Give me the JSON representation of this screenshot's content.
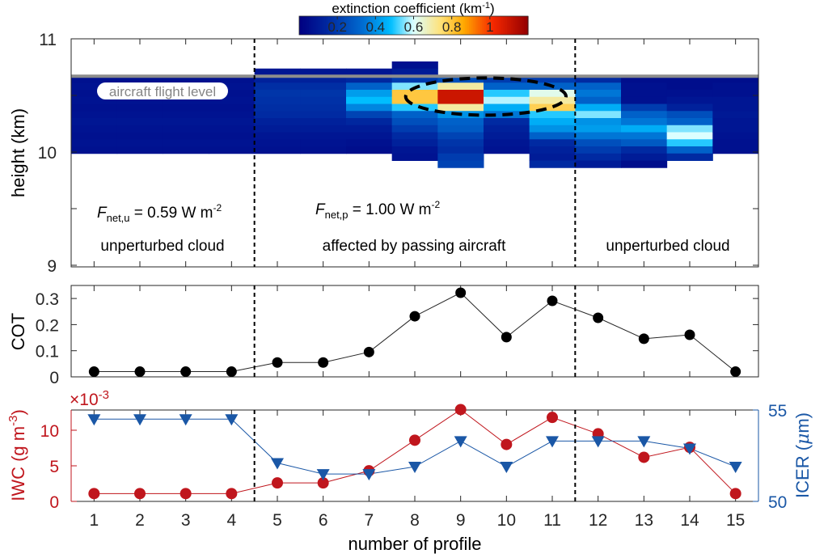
{
  "chart_data": [
    {
      "type": "heatmap",
      "panel": "top",
      "ylabel": "height (km)",
      "ylim": [
        9,
        11
      ],
      "yticks": [
        "9",
        "10",
        "11"
      ],
      "xlim": [
        0.5,
        15.5
      ],
      "colorbar": {
        "title": "extinction coefficient (km",
        "title_sup": "-1",
        "title_end": ")",
        "range": [
          0,
          1.2
        ],
        "ticks": [
          "0.2",
          "0.4",
          "0.6",
          "0.8",
          "1"
        ],
        "tick_values": [
          0.2,
          0.4,
          0.6,
          0.8,
          1.0
        ]
      },
      "bin_top_km": 10.8,
      "bin_size_km": 0.0625,
      "columns": [
        [
          null,
          null,
          0.06,
          0.07,
          0.06,
          0.07,
          0.06,
          0.07,
          0.08,
          0.07,
          0.06,
          0.07,
          0.06,
          null,
          null,
          null
        ],
        [
          null,
          null,
          0.06,
          0.07,
          0.06,
          0.07,
          0.06,
          0.07,
          0.08,
          0.07,
          0.06,
          0.07,
          0.06,
          null,
          null,
          null
        ],
        [
          null,
          null,
          0.06,
          0.07,
          0.06,
          0.07,
          0.06,
          0.07,
          0.08,
          0.07,
          0.06,
          0.07,
          0.06,
          null,
          null,
          null
        ],
        [
          null,
          null,
          0.06,
          0.07,
          0.06,
          0.07,
          0.06,
          0.07,
          0.08,
          0.07,
          0.06,
          0.07,
          0.06,
          null,
          null,
          null
        ],
        [
          null,
          0.08,
          0.12,
          0.16,
          0.18,
          0.17,
          0.16,
          0.15,
          0.12,
          0.1,
          0.08,
          0.07,
          0.06,
          null,
          null,
          null
        ],
        [
          null,
          0.08,
          0.12,
          0.16,
          0.18,
          0.17,
          0.16,
          0.15,
          0.12,
          0.1,
          0.08,
          0.07,
          0.06,
          null,
          null,
          null
        ],
        [
          null,
          0.08,
          0.14,
          0.3,
          0.42,
          0.48,
          0.38,
          0.22,
          0.14,
          0.1,
          0.08,
          0.06,
          0.05,
          null,
          null,
          null
        ],
        [
          0.06,
          0.1,
          0.2,
          0.55,
          0.8,
          0.8,
          0.5,
          0.3,
          0.25,
          0.2,
          0.15,
          0.12,
          0.08,
          0.07,
          null,
          null
        ],
        [
          null,
          null,
          0.25,
          0.7,
          1.1,
          1.1,
          0.7,
          0.4,
          0.3,
          0.28,
          0.22,
          0.18,
          0.16,
          0.2,
          0.22,
          null
        ],
        [
          null,
          null,
          0.2,
          0.3,
          0.5,
          0.58,
          0.45,
          0.35,
          0.15,
          0.12,
          0.1,
          0.08,
          0.07,
          null,
          null,
          null
        ],
        [
          null,
          null,
          0.2,
          0.3,
          0.62,
          0.7,
          0.78,
          0.5,
          0.45,
          0.4,
          0.3,
          0.15,
          0.12,
          0.1,
          0.15,
          null
        ],
        [
          null,
          null,
          0.15,
          0.3,
          0.35,
          0.3,
          0.45,
          0.55,
          0.4,
          0.42,
          0.35,
          0.25,
          0.2,
          0.15,
          0.1,
          null
        ],
        [
          null,
          null,
          0.05,
          0.06,
          0.06,
          0.06,
          0.2,
          0.3,
          0.35,
          0.45,
          0.35,
          0.28,
          0.15,
          0.1,
          0.05,
          null
        ],
        [
          null,
          null,
          0.05,
          0.05,
          0.06,
          0.08,
          0.12,
          0.25,
          0.3,
          0.55,
          0.6,
          0.5,
          0.3,
          0.15,
          null,
          null
        ],
        [
          null,
          null,
          0.05,
          0.06,
          0.06,
          0.08,
          0.08,
          0.09,
          0.08,
          0.08,
          0.07,
          0.06,
          0.06,
          null,
          null,
          null
        ]
      ],
      "flight_level_km": 10.67,
      "flight_level_label": "aircraft flight level",
      "annotations": {
        "flux_u": {
          "var": "F",
          "sub": "net,u",
          "text": " = 0.59 W m",
          "sup": "-2"
        },
        "flux_p": {
          "var": "F",
          "sub": "net,p",
          "text": " = 1.00 W m",
          "sup": "-2"
        },
        "region_left": "unperturbed cloud",
        "region_mid": "affected by passing aircraft",
        "region_right": "unperturbed cloud"
      },
      "divider_x": [
        4.5,
        11.5
      ]
    },
    {
      "type": "line",
      "panel": "middle",
      "ylabel": "COT",
      "ylim": [
        0,
        0.35
      ],
      "yticks": [
        "0",
        "0.1",
        "0.2",
        "0.3"
      ],
      "ytick_values": [
        0,
        0.1,
        0.2,
        0.3
      ],
      "x": [
        1,
        2,
        3,
        4,
        5,
        6,
        7,
        8,
        9,
        10,
        11,
        12,
        13,
        14,
        15
      ],
      "series": [
        {
          "name": "COT",
          "color": "#000000",
          "values": [
            0.02,
            0.02,
            0.02,
            0.02,
            0.055,
            0.055,
            0.095,
            0.232,
            0.322,
            0.152,
            0.291,
            0.226,
            0.146,
            0.161,
            0.02
          ]
        }
      ]
    },
    {
      "type": "line",
      "panel": "bottom",
      "xlabel": "number of profile",
      "xticks": [
        "1",
        "2",
        "3",
        "4",
        "5",
        "6",
        "7",
        "8",
        "9",
        "10",
        "11",
        "12",
        "13",
        "14",
        "15"
      ],
      "ylabel_left": "IWC (g m",
      "ylabel_left_sup": "-3",
      "ylabel_left_end": ")",
      "ylabel_right": "ICER (",
      "ylabel_right_mu": "μ",
      "ylabel_right_end": "m)",
      "exponent_label": "×10",
      "exponent_sup": "-3",
      "ylim_left": [
        0,
        13
      ],
      "yticks_left": [
        "0",
        "5",
        "10"
      ],
      "ytick_left_values": [
        0,
        5,
        10
      ],
      "ylim_right": [
        50,
        55
      ],
      "yticks_right": [
        "50",
        "55"
      ],
      "ytick_right_values": [
        50,
        55
      ],
      "x": [
        1,
        2,
        3,
        4,
        5,
        6,
        7,
        8,
        9,
        10,
        11,
        12,
        13,
        14,
        15
      ],
      "series": [
        {
          "name": "IWC",
          "axis": "left",
          "color": "#c0161d",
          "marker": "circle",
          "values": [
            1.1,
            1.1,
            1.1,
            1.1,
            2.6,
            2.6,
            4.3,
            8.6,
            12.9,
            8.0,
            11.8,
            9.5,
            6.2,
            7.6,
            1.1
          ]
        },
        {
          "name": "ICER",
          "axis": "right",
          "color": "#1a57a6",
          "marker": "triangle-down",
          "values": [
            54.5,
            54.5,
            54.5,
            54.5,
            52.1,
            51.5,
            51.5,
            51.9,
            53.3,
            51.9,
            53.3,
            53.3,
            53.3,
            52.9,
            51.9
          ]
        }
      ]
    }
  ]
}
